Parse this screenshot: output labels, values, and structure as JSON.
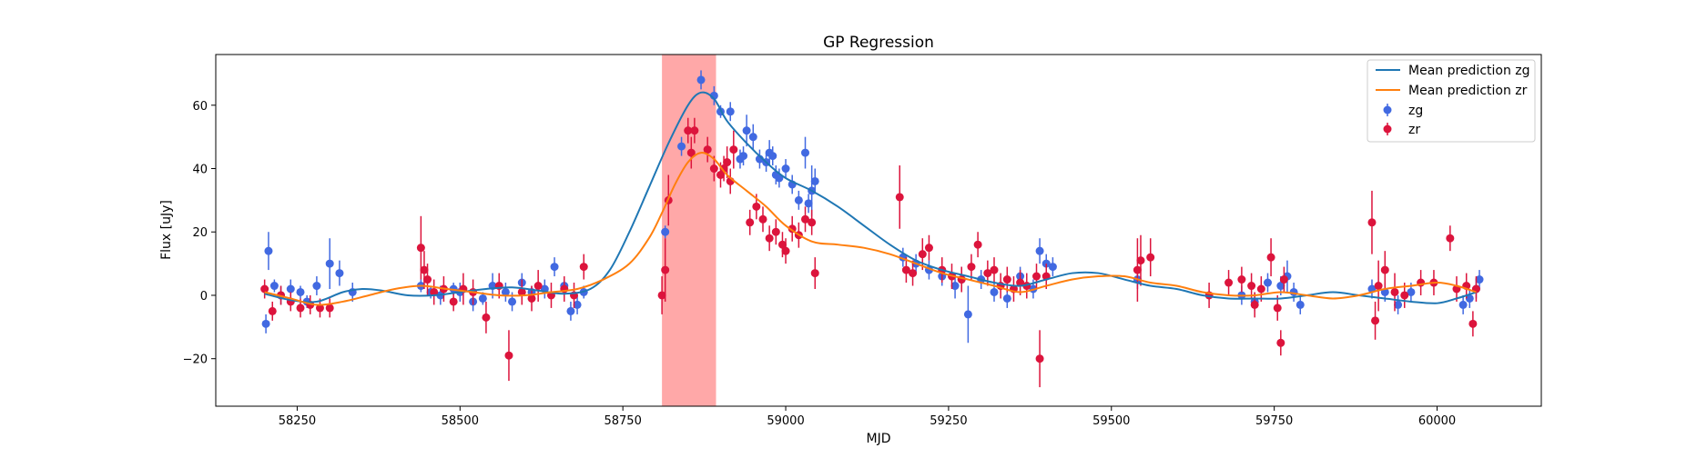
{
  "chart_data": {
    "type": "scatter",
    "title": "GP Regression",
    "xlabel": "MJD",
    "ylabel": "Flux [uJy]",
    "xlim": [
      58125,
      60160
    ],
    "ylim": [
      -35,
      76
    ],
    "xticks": [
      58250,
      58500,
      58750,
      59000,
      59250,
      59500,
      59750,
      60000
    ],
    "yticks": [
      -20,
      0,
      20,
      40,
      60
    ],
    "grid": false,
    "legend_position": "top-right",
    "highlight_region": {
      "x_start": 58810,
      "x_end": 58893,
      "color": "#ff9999"
    },
    "colors": {
      "zg_points": "#4169e1",
      "zr_points": "#dc143c",
      "zg_mean": "#1f77b4",
      "zr_mean": "#ff7f0e"
    },
    "series": [
      {
        "name": "Mean prediction zg",
        "kind": "line",
        "x": [
          58200,
          58240,
          58280,
          58320,
          58350,
          58380,
          58420,
          58460,
          58500,
          58540,
          58580,
          58620,
          58660,
          58700,
          58730,
          58760,
          58790,
          58820,
          58850,
          58870,
          58890,
          58910,
          58940,
          58970,
          59000,
          59040,
          59080,
          59120,
          59160,
          59200,
          59240,
          59280,
          59320,
          59360,
          59400,
          59440,
          59480,
          59520,
          59560,
          59600,
          59640,
          59680,
          59720,
          59760,
          59800,
          59840,
          59880,
          59920,
          59960,
          60000,
          60030,
          60060
        ],
        "y": [
          0.5,
          -1.5,
          -2,
          1,
          2,
          1.5,
          0,
          0,
          1,
          2,
          2.5,
          1.5,
          0.5,
          2,
          8,
          20,
          34,
          48,
          60,
          64,
          62,
          55,
          48,
          42,
          37,
          33,
          28,
          22,
          16,
          11,
          8,
          6,
          4,
          3,
          5,
          7,
          7,
          5,
          3,
          2,
          0,
          -1,
          -1,
          -1,
          0,
          1,
          0,
          -1,
          -2,
          -2.5,
          -1,
          1
        ]
      },
      {
        "name": "Mean prediction zr",
        "kind": "line",
        "x": [
          58200,
          58240,
          58280,
          58320,
          58360,
          58400,
          58440,
          58480,
          58520,
          58560,
          58600,
          58640,
          58680,
          58720,
          58760,
          58790,
          58810,
          58830,
          58850,
          58870,
          58890,
          58910,
          58940,
          58970,
          59000,
          59040,
          59080,
          59120,
          59160,
          59200,
          59240,
          59280,
          59320,
          59360,
          59400,
          59440,
          59480,
          59520,
          59560,
          59600,
          59640,
          59680,
          59720,
          59760,
          59800,
          59840,
          59880,
          59920,
          59960,
          60000,
          60030,
          60060
        ],
        "y": [
          1,
          -1,
          -3,
          -2,
          0,
          2,
          3,
          2,
          1,
          0,
          0,
          1,
          2,
          5,
          10,
          18,
          26,
          35,
          42,
          45,
          43,
          38,
          33,
          28,
          22,
          17,
          16,
          15,
          13,
          10,
          7,
          5,
          3,
          1,
          3,
          5,
          6,
          6,
          4,
          3,
          1,
          0,
          0,
          1,
          0,
          -1,
          0,
          2,
          3,
          4,
          3,
          1
        ]
      },
      {
        "name": "zg",
        "kind": "errorbar",
        "x": [
          58202,
          58206,
          58215,
          58225,
          58240,
          58255,
          58265,
          58280,
          58300,
          58315,
          58335,
          58440,
          58455,
          58470,
          58490,
          58500,
          58520,
          58535,
          58550,
          58570,
          58580,
          58595,
          58610,
          58630,
          58645,
          58660,
          58670,
          58680,
          58690,
          58815,
          58840,
          58870,
          58890,
          58900,
          58915,
          58930,
          58935,
          58940,
          58950,
          58960,
          58970,
          58975,
          58980,
          58985,
          58990,
          59000,
          59010,
          59020,
          59030,
          59035,
          59040,
          59045,
          59180,
          59200,
          59220,
          59240,
          59260,
          59270,
          59280,
          59300,
          59320,
          59340,
          59360,
          59380,
          59390,
          59400,
          59410,
          59540,
          59700,
          59720,
          59740,
          59760,
          59770,
          59780,
          59790,
          59900,
          59920,
          59940,
          59960,
          60040,
          60050,
          60060,
          60065
        ],
        "y": [
          -9,
          14,
          3,
          0,
          2,
          1,
          -2,
          3,
          10,
          7,
          1,
          3,
          1,
          0,
          2,
          1,
          -2,
          -1,
          3,
          1,
          -2,
          4,
          1,
          2,
          9,
          3,
          -5,
          -3,
          1,
          20,
          47,
          68,
          63,
          58,
          58,
          43,
          44,
          52,
          50,
          43,
          42,
          45,
          44,
          38,
          37,
          40,
          35,
          30,
          45,
          29,
          33,
          36,
          12,
          10,
          8,
          6,
          3,
          5,
          -6,
          5,
          1,
          -1,
          6,
          2,
          14,
          10,
          9,
          5,
          0,
          -2,
          4,
          3,
          6,
          1,
          -3,
          2,
          1,
          -3,
          1,
          -3,
          -1,
          2,
          5
        ],
        "yerr": [
          3,
          6,
          2,
          3,
          3,
          2,
          2,
          3,
          8,
          4,
          3,
          2,
          2,
          3,
          2,
          3,
          3,
          2,
          4,
          3,
          3,
          3,
          2,
          3,
          3,
          2,
          3,
          3,
          2,
          2,
          3,
          3,
          3,
          2,
          3,
          3,
          3,
          5,
          4,
          3,
          3,
          4,
          3,
          3,
          3,
          3,
          3,
          3,
          5,
          3,
          8,
          4,
          3,
          3,
          3,
          3,
          4,
          4,
          9,
          3,
          3,
          3,
          3,
          3,
          4,
          3,
          3,
          3,
          3,
          3,
          3,
          3,
          5,
          3,
          3,
          3,
          3,
          3,
          3,
          3,
          3,
          3,
          3
        ]
      },
      {
        "name": "zr",
        "kind": "errorbar",
        "x": [
          58200,
          58212,
          58225,
          58240,
          58255,
          58270,
          58285,
          58300,
          58440,
          58445,
          58450,
          58460,
          58475,
          58490,
          58505,
          58520,
          58540,
          58560,
          58575,
          58595,
          58610,
          58620,
          58640,
          58660,
          58675,
          58690,
          58810,
          58815,
          58820,
          58850,
          58855,
          58860,
          58880,
          58890,
          58900,
          58905,
          58910,
          58915,
          58920,
          58945,
          58955,
          58965,
          58975,
          58985,
          58995,
          59000,
          59010,
          59020,
          59030,
          59040,
          59045,
          59175,
          59185,
          59195,
          59210,
          59220,
          59240,
          59255,
          59270,
          59285,
          59295,
          59310,
          59320,
          59330,
          59340,
          59350,
          59360,
          59370,
          59385,
          59390,
          59400,
          59540,
          59545,
          59560,
          59650,
          59680,
          59700,
          59715,
          59720,
          59730,
          59745,
          59755,
          59760,
          59765,
          59900,
          59905,
          59910,
          59920,
          59935,
          59950,
          59975,
          59995,
          60020,
          60030,
          60045,
          60055,
          60060
        ],
        "y": [
          2,
          -5,
          0,
          -2,
          -4,
          -3,
          -4,
          -4,
          15,
          8,
          5,
          1,
          2,
          -2,
          2,
          1,
          -7,
          3,
          -19,
          1,
          -1,
          3,
          0,
          2,
          0,
          9,
          0,
          8,
          30,
          52,
          45,
          52,
          46,
          40,
          38,
          40,
          42,
          36,
          46,
          23,
          28,
          24,
          18,
          20,
          16,
          14,
          21,
          19,
          24,
          23,
          7,
          31,
          8,
          7,
          13,
          15,
          8,
          6,
          5,
          9,
          16,
          7,
          8,
          3,
          5,
          2,
          4,
          3,
          6,
          -20,
          6,
          8,
          11,
          12,
          0,
          4,
          5,
          3,
          -3,
          2,
          12,
          -4,
          -15,
          5,
          23,
          -8,
          3,
          8,
          1,
          0,
          4,
          4,
          18,
          2,
          3,
          -9,
          2
        ],
        "yerr": [
          3,
          3,
          3,
          3,
          3,
          3,
          3,
          3,
          10,
          6,
          5,
          4,
          4,
          3,
          5,
          4,
          5,
          4,
          8,
          4,
          4,
          5,
          4,
          4,
          4,
          4,
          6,
          10,
          8,
          4,
          5,
          4,
          4,
          4,
          4,
          4,
          5,
          4,
          6,
          4,
          4,
          4,
          4,
          4,
          4,
          4,
          4,
          4,
          4,
          4,
          5,
          10,
          4,
          4,
          5,
          4,
          4,
          4,
          4,
          4,
          4,
          4,
          4,
          4,
          4,
          4,
          4,
          4,
          4,
          9,
          4,
          10,
          8,
          6,
          4,
          4,
          4,
          4,
          4,
          4,
          6,
          4,
          4,
          4,
          10,
          6,
          8,
          6,
          6,
          4,
          4,
          4,
          4,
          4,
          4,
          4,
          4
        ]
      }
    ],
    "legend": [
      {
        "label": "Mean prediction zg",
        "marker": "line",
        "color": "#1f77b4"
      },
      {
        "label": "Mean prediction zr",
        "marker": "line",
        "color": "#ff7f0e"
      },
      {
        "label": "zg",
        "marker": "errorbar",
        "color": "#4169e1"
      },
      {
        "label": "zr",
        "marker": "errorbar",
        "color": "#dc143c"
      }
    ]
  }
}
